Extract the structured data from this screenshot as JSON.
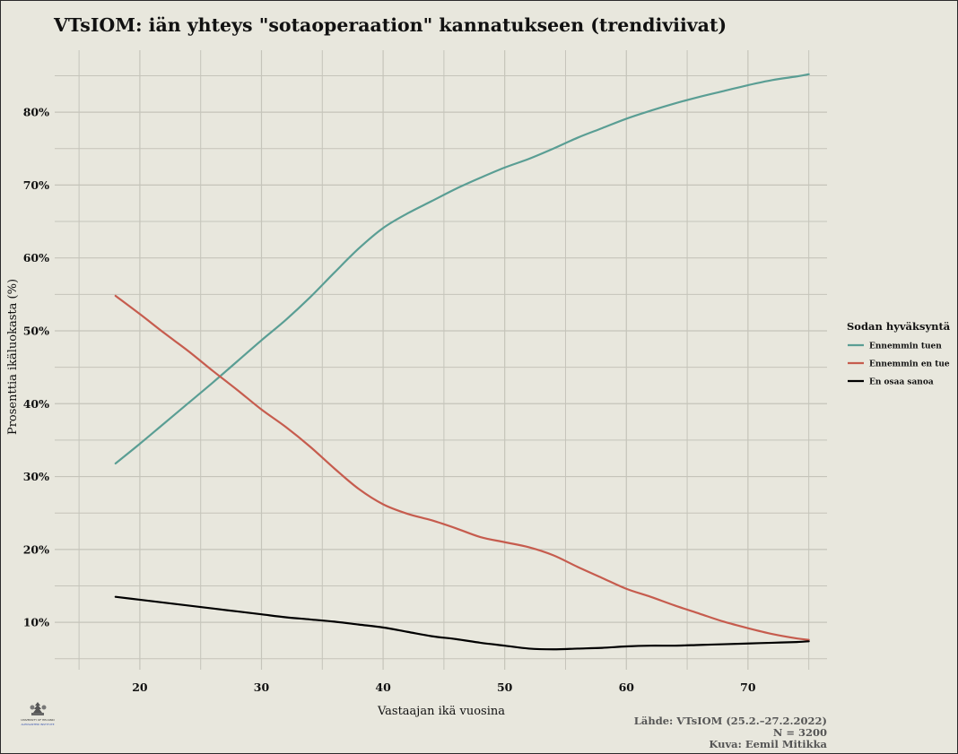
{
  "chart_data": {
    "type": "line",
    "title": "VTsIOM: iän yhteys \"sotaoperaation\" kannatukseen (trendiviivat)",
    "xlabel": "Vastaajan ikä vuosina",
    "ylabel": "Prosenttia ikäluokasta (%)",
    "xlim": [
      13,
      76.5
    ],
    "ylim": [
      3.5,
      88.5
    ],
    "xticks": [
      20,
      30,
      40,
      50,
      60,
      70
    ],
    "xtick_labels": [
      "20",
      "30",
      "40",
      "50",
      "60",
      "70"
    ],
    "yticks": [
      10,
      20,
      30,
      40,
      50,
      60,
      70,
      80
    ],
    "ytick_labels": [
      "10%",
      "20%",
      "30%",
      "40%",
      "50%",
      "60%",
      "70%",
      "80%"
    ],
    "grid": true,
    "legend": {
      "title": "Sodan hyväksyntä",
      "position": "right"
    },
    "series": [
      {
        "name": "Ennemmin tuen",
        "color": "#5a9e94",
        "x": [
          18,
          20,
          22,
          24,
          26,
          28,
          30,
          32,
          34,
          36,
          38,
          40,
          42,
          44,
          46,
          48,
          50,
          52,
          54,
          56,
          58,
          60,
          62,
          64,
          66,
          68,
          70,
          72,
          74,
          75
        ],
        "y": [
          31.8,
          34.5,
          37.3,
          40.1,
          42.9,
          45.8,
          48.7,
          51.5,
          54.6,
          58.0,
          61.3,
          64.1,
          66.1,
          67.8,
          69.5,
          71.0,
          72.4,
          73.6,
          75.0,
          76.5,
          77.8,
          79.1,
          80.2,
          81.2,
          82.1,
          82.9,
          83.7,
          84.4,
          84.9,
          85.2
        ]
      },
      {
        "name": "Ennemmin en tue",
        "color": "#c65c4e",
        "x": [
          18,
          20,
          22,
          24,
          26,
          28,
          30,
          32,
          34,
          36,
          38,
          40,
          42,
          44,
          46,
          48,
          50,
          52,
          54,
          56,
          58,
          60,
          62,
          64,
          66,
          68,
          70,
          72,
          74,
          75
        ],
        "y": [
          54.8,
          52.3,
          49.7,
          47.2,
          44.5,
          41.9,
          39.2,
          36.8,
          34.1,
          31.1,
          28.3,
          26.2,
          24.9,
          24.0,
          22.9,
          21.7,
          21.0,
          20.3,
          19.2,
          17.6,
          16.1,
          14.6,
          13.5,
          12.3,
          11.2,
          10.1,
          9.2,
          8.4,
          7.8,
          7.6
        ]
      },
      {
        "name": "En osaa sanoa",
        "color": "#000000",
        "x": [
          18,
          20,
          22,
          24,
          26,
          28,
          30,
          32,
          34,
          36,
          38,
          40,
          42,
          44,
          46,
          48,
          50,
          52,
          54,
          56,
          58,
          60,
          62,
          64,
          66,
          68,
          70,
          72,
          74,
          75
        ],
        "y": [
          13.5,
          13.1,
          12.7,
          12.3,
          11.9,
          11.5,
          11.1,
          10.7,
          10.4,
          10.1,
          9.7,
          9.3,
          8.7,
          8.1,
          7.7,
          7.2,
          6.8,
          6.4,
          6.3,
          6.4,
          6.5,
          6.7,
          6.8,
          6.8,
          6.9,
          7.0,
          7.1,
          7.2,
          7.3,
          7.4
        ]
      }
    ]
  },
  "caption": {
    "source": "Lähde: VTsIOM (25.2.–27.2.2022)",
    "n": "N = 3200",
    "credit": "Kuva: Eemil Mitikka"
  },
  "logo": {
    "text_line1": "UNIVERSITY OF HELSINKI",
    "text_line2": "ALEKSANTERI INSTITUTE",
    "color": "#3a56b0"
  },
  "colors": {
    "background": "#e8e7dd",
    "grid": "#c5c4ba"
  }
}
